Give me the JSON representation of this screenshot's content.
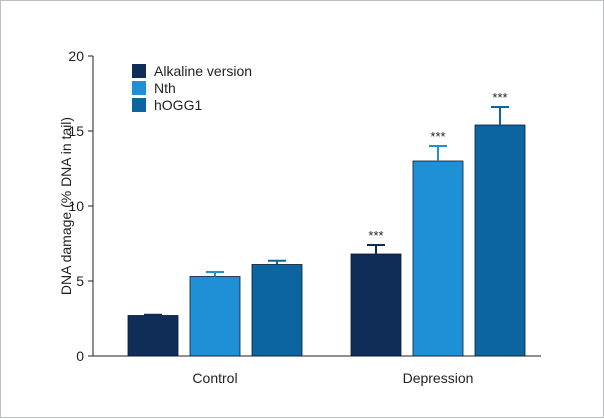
{
  "chart_data": {
    "type": "bar",
    "title": "",
    "xlabel": "",
    "ylabel": "DNA damage (% DNA in tail)",
    "ylim": [
      0,
      20
    ],
    "yticks": [
      0,
      5,
      10,
      15,
      20
    ],
    "categories": [
      "Control",
      "Depression"
    ],
    "series": [
      {
        "name": "Alkaline version",
        "color": "#0f2d57",
        "values": [
          2.7,
          6.8
        ],
        "errors": [
          0.05,
          0.6
        ],
        "significance": [
          "",
          "***"
        ]
      },
      {
        "name": "Nth",
        "color": "#1f8fd6",
        "values": [
          5.3,
          13.0
        ],
        "errors": [
          0.3,
          1.0
        ],
        "significance": [
          "",
          "***"
        ]
      },
      {
        "name": "hOGG1",
        "color": "#0c65a0",
        "values": [
          6.1,
          15.4
        ],
        "errors": [
          0.25,
          1.2
        ],
        "significance": [
          "",
          "***"
        ]
      }
    ],
    "legend_position": "top-left",
    "grid": false
  }
}
